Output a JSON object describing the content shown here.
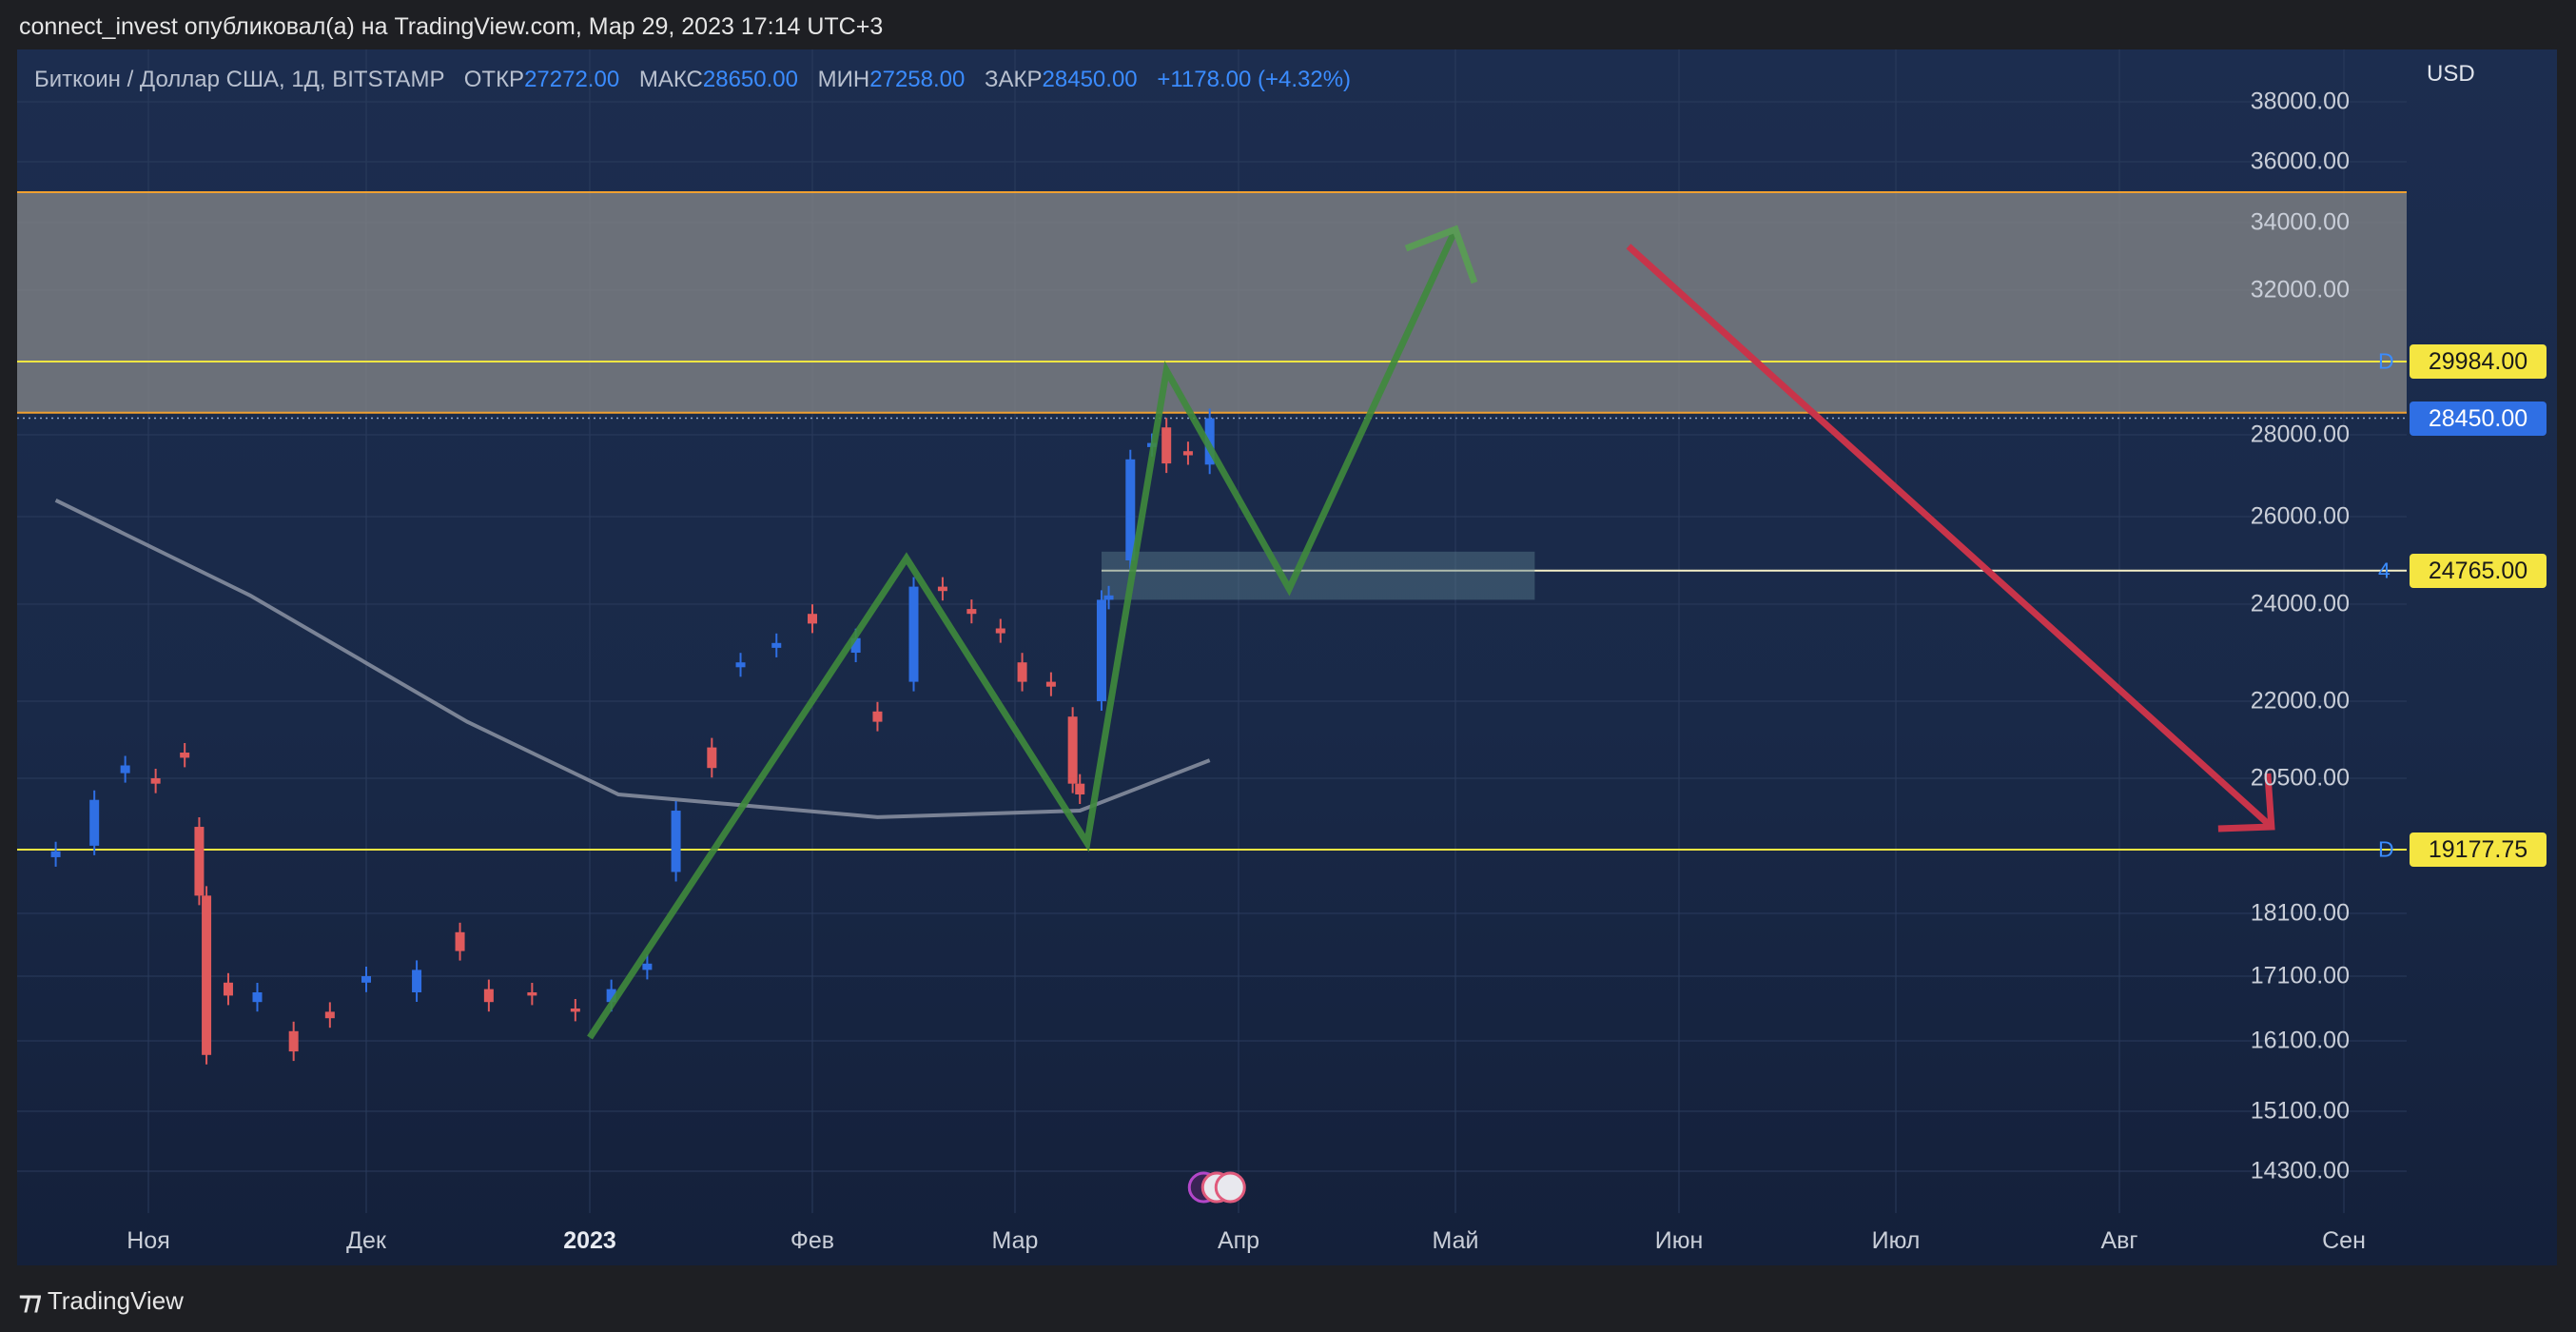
{
  "header": {
    "caption": "connect_invest опубликовал(а) на TradingView.com, Мар 29, 2023 17:14 UTC+3"
  },
  "legend": {
    "symbol": "Биткоин / Доллар США, 1Д, BITSTAMP",
    "open_label": "ОТКР",
    "open": "27272.00",
    "high_label": "МАКС",
    "high": "28650.00",
    "low_label": "МИН",
    "low": "27258.00",
    "close_label": "ЗАКР",
    "close": "28450.00",
    "change": "+1178.00 (+4.32%)"
  },
  "currency": "USD",
  "footer": {
    "brand": "TradingView"
  },
  "colors": {
    "up": "#2f6fe4",
    "down": "#e05a5c",
    "accent": "#3b8cff",
    "level_line": "#f5e642",
    "zone_border": "#f0a030",
    "green_path": "#3f8a3c",
    "red_arrow": "#c8344a"
  },
  "chart_data": {
    "type": "candlestick",
    "symbol": "BTCUSD",
    "interval": "1D",
    "x_ticks": [
      "Ноя",
      "Дек",
      "2023",
      "Фев",
      "Мар",
      "Апр",
      "Май",
      "Июн",
      "Июл",
      "Авг",
      "Сен"
    ],
    "y_ticks": [
      "38000.00",
      "36000.00",
      "34000.00",
      "32000.00",
      "28000.00",
      "26000.00",
      "24000.00",
      "22000.00",
      "20500.00",
      "18100.00",
      "17100.00",
      "16100.00",
      "15100.00",
      "14300.00"
    ],
    "y_range": [
      13800,
      38000
    ],
    "price_tags": [
      {
        "value": "29984.00",
        "letter": "D",
        "style": "level"
      },
      {
        "value": "28450.00",
        "letter": "",
        "style": "last"
      },
      {
        "value": "24765.00",
        "letter": "4",
        "style": "level"
      },
      {
        "value": "19177.75",
        "letter": "D",
        "style": "level"
      }
    ],
    "levels": [
      29984,
      24765,
      19177.75
    ],
    "resistance_zone": [
      28600,
      35000
    ],
    "last_price": 28450,
    "series": [
      {
        "date": "2022-10-20",
        "open": 19050,
        "close": 19150
      },
      {
        "date": "2022-10-25",
        "open": 19250,
        "close": 20100
      },
      {
        "date": "2022-10-29",
        "open": 20600,
        "close": 20750
      },
      {
        "date": "2022-11-02",
        "open": 20500,
        "close": 20400
      },
      {
        "date": "2022-11-06",
        "open": 21000,
        "close": 20900
      },
      {
        "date": "2022-11-08",
        "open": 19600,
        "close": 18400
      },
      {
        "date": "2022-11-09",
        "open": 18400,
        "close": 15900
      },
      {
        "date": "2022-11-12",
        "open": 17000,
        "close": 16800
      },
      {
        "date": "2022-11-16",
        "open": 16700,
        "close": 16850
      },
      {
        "date": "2022-11-21",
        "open": 16250,
        "close": 15950
      },
      {
        "date": "2022-11-26",
        "open": 16550,
        "close": 16450
      },
      {
        "date": "2022-12-01",
        "open": 17000,
        "close": 17100
      },
      {
        "date": "2022-12-08",
        "open": 16850,
        "close": 17200
      },
      {
        "date": "2022-12-14",
        "open": 17800,
        "close": 17500
      },
      {
        "date": "2022-12-18",
        "open": 16900,
        "close": 16700
      },
      {
        "date": "2022-12-24",
        "open": 16850,
        "close": 16800
      },
      {
        "date": "2022-12-30",
        "open": 16600,
        "close": 16550
      },
      {
        "date": "2023-01-04",
        "open": 16700,
        "close": 16900
      },
      {
        "date": "2023-01-09",
        "open": 17200,
        "close": 17300
      },
      {
        "date": "2023-01-13",
        "open": 18800,
        "close": 19900
      },
      {
        "date": "2023-01-18",
        "open": 21100,
        "close": 20700
      },
      {
        "date": "2023-01-22",
        "open": 22700,
        "close": 22800
      },
      {
        "date": "2023-01-27",
        "open": 23100,
        "close": 23200
      },
      {
        "date": "2023-02-01",
        "open": 23800,
        "close": 23600
      },
      {
        "date": "2023-02-07",
        "open": 23000,
        "close": 23300
      },
      {
        "date": "2023-02-10",
        "open": 21800,
        "close": 21600
      },
      {
        "date": "2023-02-15",
        "open": 22400,
        "close": 24400
      },
      {
        "date": "2023-02-19",
        "open": 24400,
        "close": 24300
      },
      {
        "date": "2023-02-23",
        "open": 23900,
        "close": 23800
      },
      {
        "date": "2023-02-27",
        "open": 23500,
        "close": 23400
      },
      {
        "date": "2023-03-02",
        "open": 22800,
        "close": 22400
      },
      {
        "date": "2023-03-06",
        "open": 22400,
        "close": 22300
      },
      {
        "date": "2023-03-09",
        "open": 21700,
        "close": 20400
      },
      {
        "date": "2023-03-10",
        "open": 20400,
        "close": 20200
      },
      {
        "date": "2023-03-13",
        "open": 22000,
        "close": 24100
      },
      {
        "date": "2023-03-14",
        "open": 24100,
        "close": 24200
      },
      {
        "date": "2023-03-17",
        "open": 25000,
        "close": 27400
      },
      {
        "date": "2023-03-20",
        "open": 27700,
        "close": 27800
      },
      {
        "date": "2023-03-22",
        "open": 28200,
        "close": 27300
      },
      {
        "date": "2023-03-25",
        "open": 27600,
        "close": 27500
      },
      {
        "date": "2023-03-28",
        "open": 27272,
        "close": 28450
      }
    ],
    "sma_200": [
      {
        "date": "2022-10-20",
        "value": 26400
      },
      {
        "date": "2022-11-15",
        "value": 24200
      },
      {
        "date": "2022-12-15",
        "value": 21600
      },
      {
        "date": "2023-01-05",
        "value": 20200
      },
      {
        "date": "2023-02-10",
        "value": 19780
      },
      {
        "date": "2023-03-10",
        "value": 19900
      },
      {
        "date": "2023-03-28",
        "value": 20850
      }
    ],
    "annotations": {
      "green_path": [
        {
          "date": "2023-01-01",
          "price": 16150
        },
        {
          "date": "2023-02-14",
          "price": 25050
        },
        {
          "date": "2023-03-11",
          "price": 19300
        },
        {
          "date": "2023-03-22",
          "price": 29740
        },
        {
          "date": "2023-04-08",
          "price": 24350
        },
        {
          "date": "2023-05-01",
          "price": 33800
        }
      ],
      "red_arrow": [
        {
          "date": "2023-05-25",
          "price": 33300
        },
        {
          "date": "2023-08-22",
          "price": 19600
        }
      ],
      "box": {
        "from": "2023-03-13",
        "to": "2023-05-12",
        "low": 24100,
        "high": 25200
      }
    }
  }
}
